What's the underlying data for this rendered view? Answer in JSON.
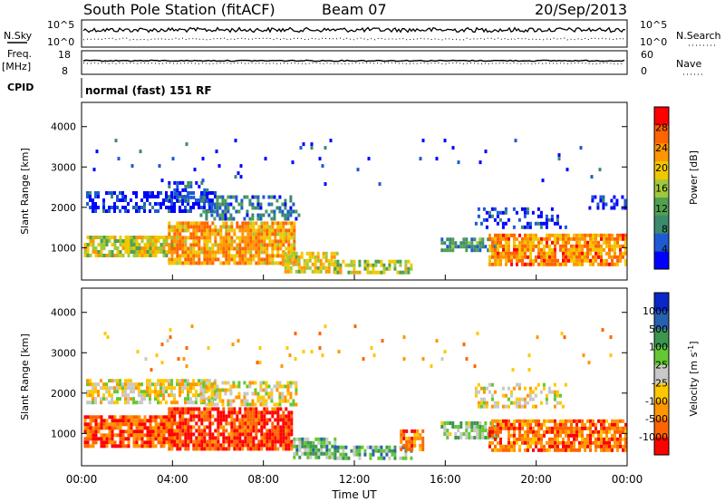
{
  "header": {
    "station": "South Pole Station (fitACF)",
    "beam": "Beam 07",
    "date": "20/Sep/2013"
  },
  "nsky_panel": {
    "left_label": "N.Sky",
    "left_ticks": [
      "10^5",
      "10^0"
    ],
    "right_label": "N.Search",
    "right_ticks": [
      "10^5",
      "10^0"
    ]
  },
  "freq_panel": {
    "left_label_line1": "Freq.",
    "left_label_line2": "[MHz]",
    "left_ticks": [
      "18",
      "8"
    ],
    "right_label": "Nave",
    "right_ticks": [
      "60",
      "0"
    ]
  },
  "cpid": {
    "label": "CPID",
    "mode": "normal (fast) 151 RF"
  },
  "x_axis": {
    "title": "Time UT",
    "ticks": [
      "00:00",
      "04:00",
      "08:00",
      "12:00",
      "16:00",
      "20:00",
      "00:00"
    ]
  },
  "chart_data": [
    {
      "type": "heatmap",
      "name": "power",
      "ylabel": "Slant Range [km]",
      "ylim": [
        200,
        4600
      ],
      "yticks": [
        1000,
        2000,
        3000,
        4000
      ],
      "xlim_hours": [
        0,
        24
      ],
      "colorbar": {
        "label": "Power [dB]",
        "ticks": [
          "28",
          "24",
          "20",
          "16",
          "12",
          "8",
          "4"
        ],
        "colors": [
          "#0000ff",
          "#1e5ad2",
          "#3c8a6e",
          "#50a050",
          "#a0c83c",
          "#f0c800",
          "#ff9600",
          "#ff6400",
          "#ff0000"
        ]
      },
      "regions": [
        {
          "t0": 0.2,
          "t1": 5.9,
          "r0": 1900,
          "r1": 2400,
          "level": 0.08,
          "density": 0.55
        },
        {
          "t0": 3.8,
          "t1": 5.5,
          "r0": 2150,
          "r1": 2650,
          "level": 0.15,
          "density": 0.5
        },
        {
          "t0": 5.2,
          "t1": 9.6,
          "r0": 1700,
          "r1": 2300,
          "level": 0.25,
          "density": 0.45
        },
        {
          "t0": 0.1,
          "t1": 4.0,
          "r0": 800,
          "r1": 1300,
          "level": 0.55,
          "density": 0.8
        },
        {
          "t0": 3.8,
          "t1": 9.4,
          "r0": 650,
          "r1": 1650,
          "level": 0.7,
          "density": 0.85
        },
        {
          "t0": 8.8,
          "t1": 11.2,
          "r0": 380,
          "r1": 900,
          "level": 0.6,
          "density": 0.75
        },
        {
          "t0": 11.1,
          "t1": 14.5,
          "r0": 380,
          "r1": 700,
          "level": 0.5,
          "density": 0.6
        },
        {
          "t0": 15.8,
          "t1": 18.2,
          "r0": 900,
          "r1": 1250,
          "level": 0.3,
          "density": 0.7
        },
        {
          "t0": 17.9,
          "t1": 23.9,
          "r0": 550,
          "r1": 1350,
          "level": 0.75,
          "density": 0.8
        },
        {
          "t0": 17.3,
          "t1": 21.3,
          "r0": 1500,
          "r1": 2000,
          "level": 0.1,
          "density": 0.35
        },
        {
          "t0": 22.3,
          "t1": 23.9,
          "r0": 2000,
          "r1": 2300,
          "level": 0.05,
          "density": 0.5
        },
        {
          "t0": 0.5,
          "t1": 23.5,
          "r0": 2600,
          "r1": 3700,
          "level": 0.1,
          "density": 0.02
        }
      ]
    },
    {
      "type": "heatmap",
      "name": "velocity",
      "ylabel": "Slant Range [km]",
      "ylim": [
        200,
        4600
      ],
      "yticks": [
        1000,
        2000,
        3000,
        4000
      ],
      "xlim_hours": [
        0,
        24
      ],
      "colorbar": {
        "label": "Velocity [m s-1]",
        "ticks": [
          "1000",
          "500",
          "100",
          "25",
          "-25",
          "-100",
          "-500",
          "-1000"
        ],
        "colors": [
          "#ff0000",
          "#ff6400",
          "#ff9600",
          "#ffc800",
          "#c8c8c8",
          "#64c832",
          "#3c9650",
          "#2860b0",
          "#0a28c8"
        ]
      },
      "regions": [
        {
          "t0": 0.2,
          "t1": 5.9,
          "r0": 1750,
          "r1": 2350,
          "level": 0.44,
          "density": 0.7
        },
        {
          "t0": 5.2,
          "t1": 9.4,
          "r0": 1700,
          "r1": 2300,
          "level": 0.44,
          "density": 0.55
        },
        {
          "t0": 0.1,
          "t1": 4.0,
          "r0": 700,
          "r1": 1450,
          "level": 0.15,
          "density": 0.85
        },
        {
          "t0": 3.8,
          "t1": 9.3,
          "r0": 650,
          "r1": 1650,
          "level": 0.1,
          "density": 0.85
        },
        {
          "t0": 9.3,
          "t1": 11.2,
          "r0": 450,
          "r1": 900,
          "level": 0.65,
          "density": 0.8
        },
        {
          "t0": 11.1,
          "t1": 14.5,
          "r0": 380,
          "r1": 700,
          "level": 0.65,
          "density": 0.65
        },
        {
          "t0": 14.0,
          "t1": 15.0,
          "r0": 600,
          "r1": 1100,
          "level": 0.2,
          "density": 0.7
        },
        {
          "t0": 15.8,
          "t1": 18.2,
          "r0": 900,
          "r1": 1300,
          "level": 0.6,
          "density": 0.7
        },
        {
          "t0": 17.9,
          "t1": 23.9,
          "r0": 600,
          "r1": 1350,
          "level": 0.2,
          "density": 0.8
        },
        {
          "t0": 17.3,
          "t1": 21.3,
          "r0": 1650,
          "r1": 2250,
          "level": 0.44,
          "density": 0.4
        },
        {
          "t0": 0.5,
          "t1": 23.5,
          "r0": 2600,
          "r1": 3700,
          "level": 0.3,
          "density": 0.02
        }
      ]
    }
  ]
}
